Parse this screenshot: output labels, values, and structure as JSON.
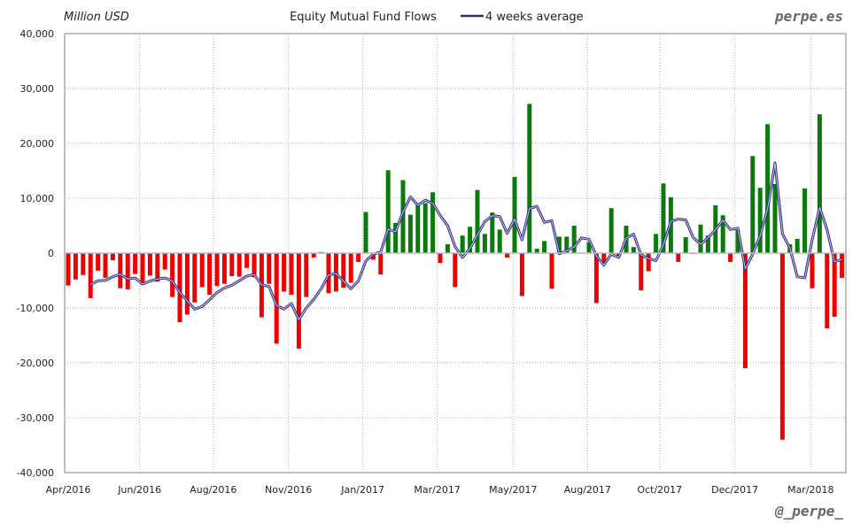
{
  "chart_data": {
    "type": "bar",
    "title": "Equity Mutual Fund Flows",
    "ylabel": "Million USD",
    "watermark_top": "perpe.es",
    "watermark_bottom": "@_perpe_",
    "legend": {
      "label": "4 weeks average",
      "placement": "top-center"
    },
    "ylim": [
      -40000,
      40000
    ],
    "yticks": [
      -40000,
      -30000,
      -20000,
      -10000,
      0,
      10000,
      20000,
      30000,
      40000
    ],
    "ytick_labels": [
      "-40,000",
      "-30,000",
      "-20,000",
      "-10,000",
      "0",
      "10,000",
      "20,000",
      "30,000",
      "40,000"
    ],
    "xticks": [
      {
        "label": "Apr/2016",
        "week": 0
      },
      {
        "label": "Jun/2016",
        "week": 9.6
      },
      {
        "label": "Aug/2016",
        "week": 19.5
      },
      {
        "label": "Nov/2016",
        "week": 29.6
      },
      {
        "label": "Jan/2017",
        "week": 39.6
      },
      {
        "label": "Mar/2017",
        "week": 49.6
      },
      {
        "label": "May/2017",
        "week": 59.8
      },
      {
        "label": "Aug/2017",
        "week": 69.8
      },
      {
        "label": "Oct/2017",
        "week": 79.5
      },
      {
        "label": "Dec/2017",
        "week": 89.6
      },
      {
        "label": "Mar/2018",
        "week": 99.8
      }
    ],
    "grid": true,
    "average_window": 4,
    "colors": {
      "positive": "#0a7a0a",
      "negative": "#ee0000",
      "average": "#2e2e80",
      "average_inner": "#c8c8ee",
      "grid": "#aaaaaa"
    },
    "values": [
      -5900,
      -4800,
      -4000,
      -8200,
      -3200,
      -4500,
      -1300,
      -6400,
      -6600,
      -3800,
      -5800,
      -4100,
      -5200,
      -3000,
      -8000,
      -12600,
      -11200,
      -9000,
      -6200,
      -7600,
      -6000,
      -5600,
      -4200,
      -4300,
      -2700,
      -4400,
      -11700,
      -5600,
      -16500,
      -7000,
      -7600,
      -17400,
      -8000,
      -800,
      200,
      -7300,
      -7000,
      -6300,
      -5400,
      -1600,
      7500,
      -1200,
      -3900,
      15100,
      5500,
      13300,
      7000,
      9100,
      9100,
      11100,
      -1800,
      1600,
      -6200,
      3200,
      4800,
      11500,
      3500,
      7400,
      4300,
      -800,
      13900,
      -7800,
      27200,
      800,
      2200,
      -6500,
      3000,
      3000,
      5000,
      100,
      2000,
      -9100,
      -1800,
      8200,
      -500,
      5000,
      1100,
      -6800,
      -3300,
      3500,
      12700,
      10200,
      -1600,
      2900,
      -100,
      5200,
      3200,
      8700,
      6900,
      -1600,
      4200,
      -21000,
      17700,
      11900,
      23500,
      12600,
      -34000,
      1600,
      2600,
      11800,
      -6400,
      25300,
      -13700,
      -11600,
      -4500
    ]
  }
}
